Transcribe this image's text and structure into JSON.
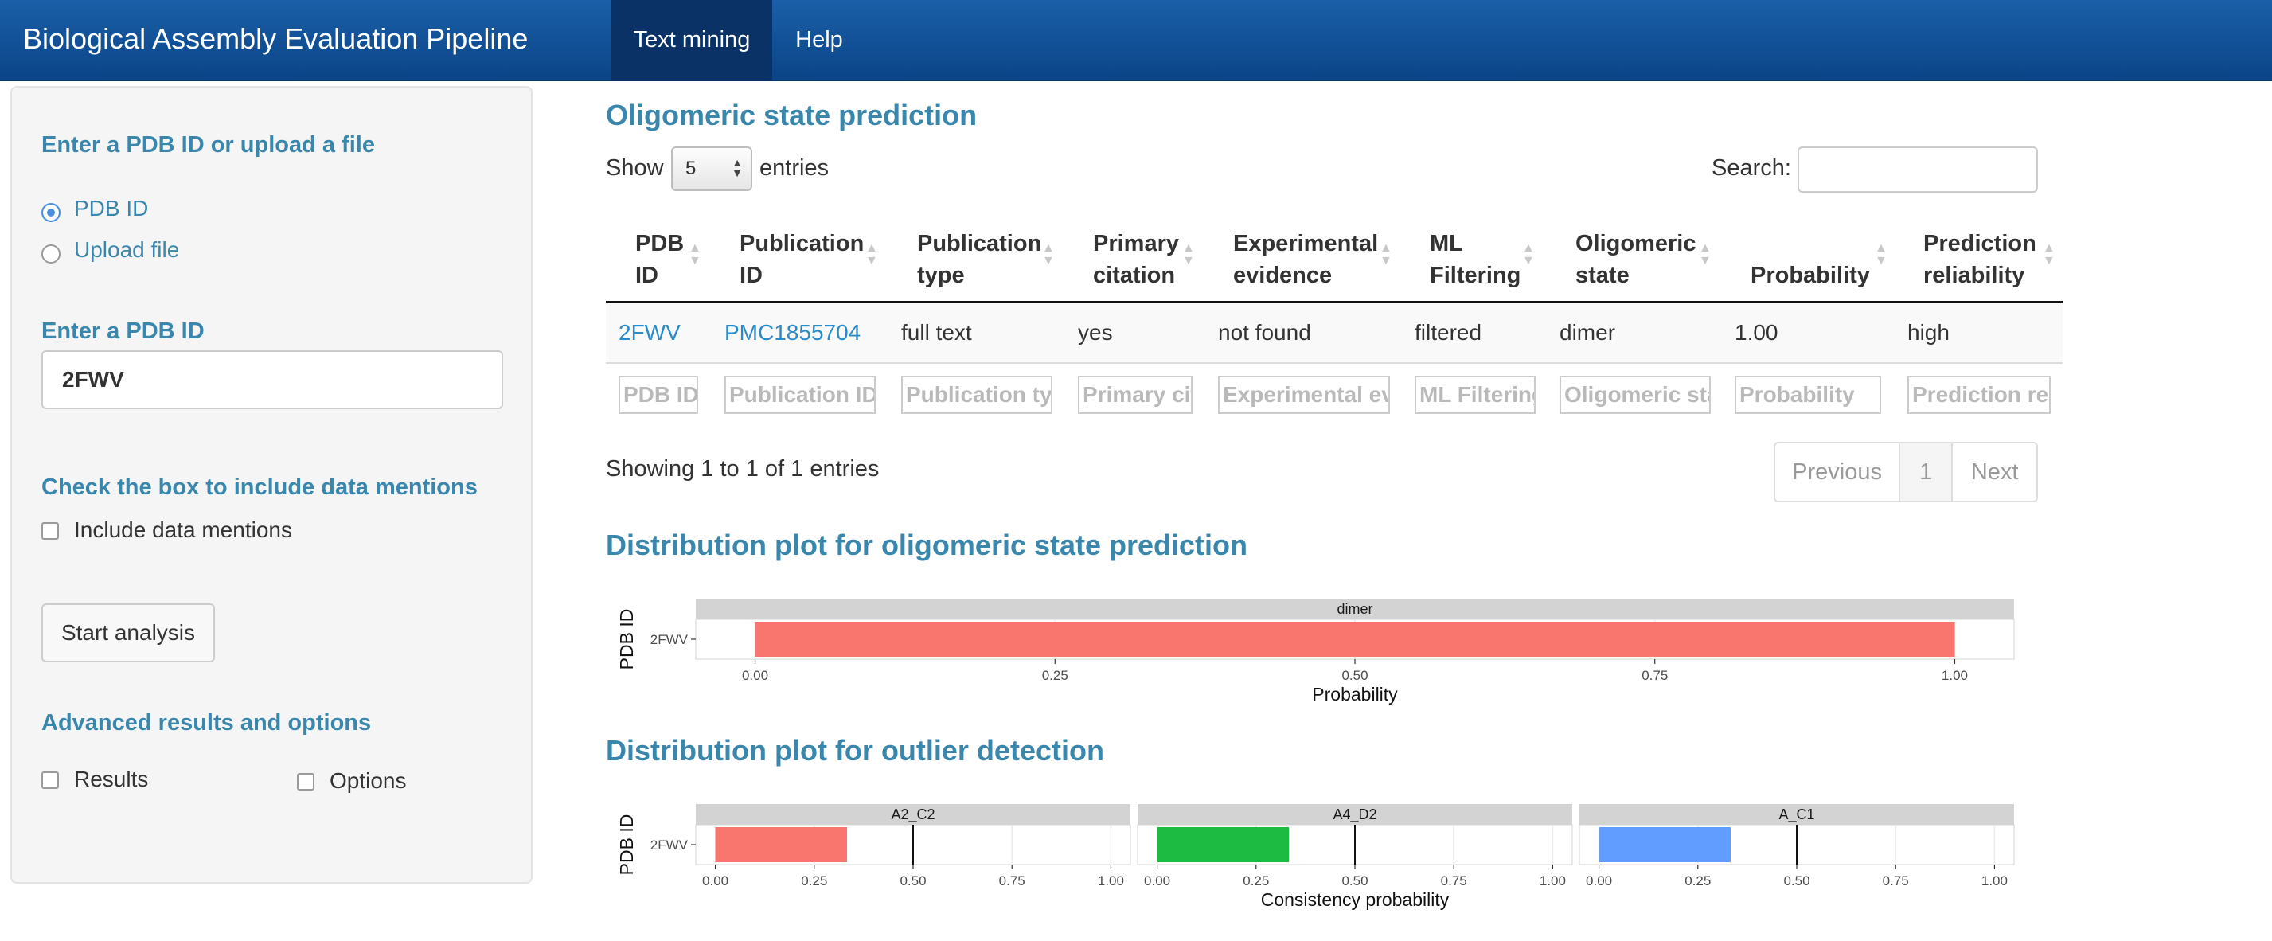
{
  "navbar": {
    "brand": "Biological Assembly Evaluation Pipeline",
    "tabs": [
      {
        "label": "Text mining",
        "active": true
      },
      {
        "label": "Help",
        "active": false
      }
    ],
    "color": "#0b4487"
  },
  "sidebar": {
    "input_heading": "Enter a PDB ID or upload a file",
    "radio_options": [
      {
        "label": "PDB ID",
        "checked": true
      },
      {
        "label": "Upload file",
        "checked": false
      }
    ],
    "pdb_heading": "Enter a PDB ID",
    "pdb_value": "2FWV",
    "mentions_heading": "Check the box to include data mentions",
    "mentions_label": "Include data mentions",
    "start_button": "Start analysis",
    "advanced_heading": "Advanced results and options",
    "advanced_options": [
      "Results",
      "Options"
    ]
  },
  "main": {
    "title": "Oligomeric state prediction",
    "length": {
      "show": "Show",
      "value": "5",
      "entries": "entries"
    },
    "search_label": "Search:",
    "columns": [
      "PDB\nID",
      "Publication\nID",
      "Publication\ntype",
      "Primary\ncitation",
      "Experimental\nevidence",
      "ML\nFiltering",
      "Oligomeric\nstate",
      "Probability",
      "Prediction\nreliability"
    ],
    "rows": [
      [
        "2FWV",
        "PMC1855704",
        "full text",
        "yes",
        "not found",
        "filtered",
        "dimer",
        "1.00",
        "high"
      ]
    ],
    "filters": [
      "PDB ID",
      "Publication ID",
      "Publication type",
      "Primary citation",
      "Experimental evidence",
      "ML Filtering",
      "Oligomeric state",
      "Probability",
      "Prediction reliability"
    ],
    "info": "Showing 1 to 1 of 1 entries",
    "pager": {
      "previous": "Previous",
      "page": "1",
      "next": "Next"
    },
    "link_color": "#2a8bc9",
    "heading_color": "#3a87ad"
  },
  "plot1": {
    "title": "Distribution plot for oligomeric state prediction"
  },
  "plot2": {
    "title": "Distribution plot for outlier detection"
  },
  "chart_data": [
    {
      "type": "bar",
      "orientation": "horizontal",
      "facet": "dimer",
      "categories": [
        "2FWV"
      ],
      "values": [
        1.0
      ],
      "xlabel": "Probability",
      "ylabel": "PDB ID",
      "xlim": [
        0,
        1
      ],
      "xticks": [
        "0.00",
        "0.25",
        "0.50",
        "0.75",
        "1.00"
      ],
      "bar_color": "#f8766d",
      "grid": true
    },
    {
      "type": "bar",
      "orientation": "horizontal",
      "facets": [
        {
          "name": "A2_C2",
          "categories": [
            "2FWV"
          ],
          "values": [
            0.333
          ],
          "color": "#f8766d"
        },
        {
          "name": "A4_D2",
          "categories": [
            "2FWV"
          ],
          "values": [
            0.333
          ],
          "color": "#1dbb41"
        },
        {
          "name": "A_C1",
          "categories": [
            "2FWV"
          ],
          "values": [
            0.333
          ],
          "color": "#619cff"
        }
      ],
      "reference_line": 0.5,
      "xlabel": "Consistency probability",
      "ylabel": "PDB ID",
      "xlim": [
        0,
        1
      ],
      "xticks": [
        "0.00",
        "0.25",
        "0.50",
        "0.75",
        "1.00"
      ],
      "grid": true
    }
  ]
}
